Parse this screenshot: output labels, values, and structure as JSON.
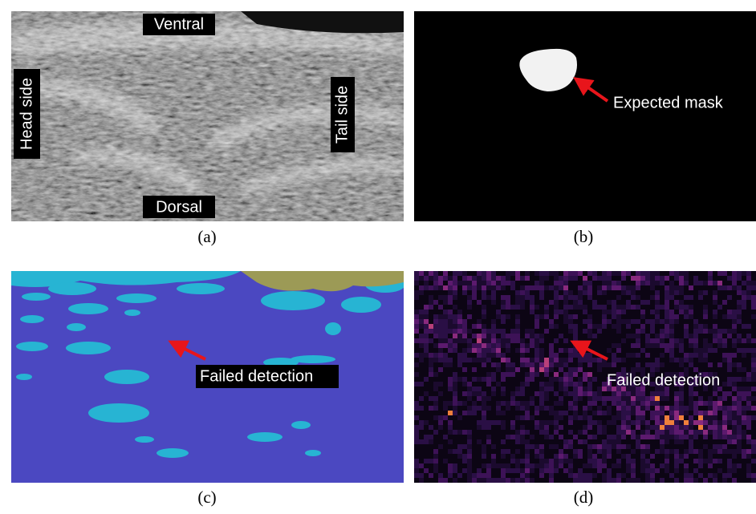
{
  "panels": [
    {
      "caption": "(a)",
      "labels": [
        "Ventral",
        "Dorsal",
        "Head side",
        "Tail side"
      ]
    },
    {
      "caption": "(b)",
      "annotation": "Expected mask"
    },
    {
      "caption": "(c)",
      "annotation": "Failed detection"
    },
    {
      "caption": "(d)",
      "annotation": "Failed detection"
    }
  ]
}
